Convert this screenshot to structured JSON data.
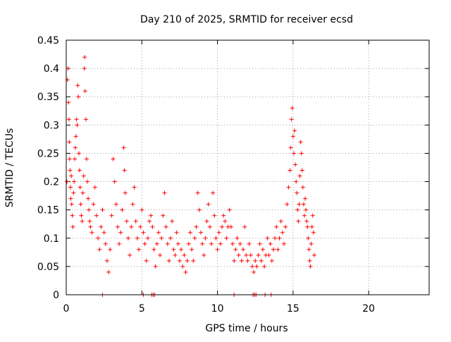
{
  "chart_data": {
    "type": "scatter",
    "title": "Day 210 of 2025, SRMTID for receiver ecsd",
    "xlabel": "GPS time / hours",
    "ylabel": "SRMTID / TECUs",
    "xlim": [
      0,
      24
    ],
    "ylim": [
      0,
      0.45
    ],
    "xticks": [
      0,
      5,
      10,
      15,
      20
    ],
    "xtick_labels": [
      "0",
      "5",
      "10",
      "15",
      "20"
    ],
    "yticks": [
      0,
      0.05,
      0.1,
      0.15,
      0.2,
      0.25,
      0.3,
      0.35,
      0.4,
      0.45
    ],
    "ytick_labels": [
      "0",
      "0.05",
      "0.1",
      "0.15",
      "0.2",
      "0.25",
      "0.3",
      "0.35",
      "0.4",
      "0.45"
    ],
    "grid": true,
    "marker": "+",
    "series_color": "#ff0000",
    "series": [
      {
        "name": "SRMTID",
        "points": [
          [
            0.05,
            0.2
          ],
          [
            0.08,
            0.38
          ],
          [
            0.12,
            0.4
          ],
          [
            0.15,
            0.34
          ],
          [
            0.18,
            0.31
          ],
          [
            0.2,
            0.27
          ],
          [
            0.22,
            0.24
          ],
          [
            0.25,
            0.22
          ],
          [
            0.28,
            0.19
          ],
          [
            0.3,
            0.17
          ],
          [
            0.33,
            0.21
          ],
          [
            0.36,
            0.16
          ],
          [
            0.4,
            0.14
          ],
          [
            0.44,
            0.12
          ],
          [
            0.48,
            0.18
          ],
          [
            0.52,
            0.2
          ],
          [
            0.56,
            0.24
          ],
          [
            0.6,
            0.26
          ],
          [
            0.64,
            0.28
          ],
          [
            0.68,
            0.31
          ],
          [
            0.72,
            0.3
          ],
          [
            0.76,
            0.37
          ],
          [
            0.8,
            0.35
          ],
          [
            0.84,
            0.25
          ],
          [
            0.88,
            0.22
          ],
          [
            0.92,
            0.19
          ],
          [
            0.96,
            0.16
          ],
          [
            1.0,
            0.14
          ],
          [
            1.05,
            0.13
          ],
          [
            1.1,
            0.18
          ],
          [
            1.15,
            0.21
          ],
          [
            1.2,
            0.4
          ],
          [
            1.22,
            0.42
          ],
          [
            1.25,
            0.36
          ],
          [
            1.3,
            0.31
          ],
          [
            1.35,
            0.24
          ],
          [
            1.4,
            0.2
          ],
          [
            1.45,
            0.17
          ],
          [
            1.5,
            0.15
          ],
          [
            1.55,
            0.13
          ],
          [
            1.6,
            0.12
          ],
          [
            1.7,
            0.11
          ],
          [
            1.8,
            0.16
          ],
          [
            1.9,
            0.19
          ],
          [
            2.0,
            0.14
          ],
          [
            2.1,
            0.1
          ],
          [
            2.2,
            0.08
          ],
          [
            2.3,
            0.12
          ],
          [
            2.4,
            0.15
          ],
          [
            2.5,
            0.11
          ],
          [
            2.6,
            0.09
          ],
          [
            2.7,
            0.06
          ],
          [
            2.8,
            0.04
          ],
          [
            2.9,
            0.08
          ],
          [
            3.0,
            0.14
          ],
          [
            3.1,
            0.24
          ],
          [
            3.2,
            0.2
          ],
          [
            3.3,
            0.16
          ],
          [
            3.4,
            0.12
          ],
          [
            3.5,
            0.09
          ],
          [
            3.6,
            0.11
          ],
          [
            3.7,
            0.15
          ],
          [
            3.8,
            0.26
          ],
          [
            3.85,
            0.22
          ],
          [
            3.9,
            0.18
          ],
          [
            4.0,
            0.13
          ],
          [
            4.1,
            0.1
          ],
          [
            4.2,
            0.07
          ],
          [
            4.3,
            0.12
          ],
          [
            4.4,
            0.16
          ],
          [
            4.5,
            0.19
          ],
          [
            4.6,
            0.13
          ],
          [
            4.7,
            0.1
          ],
          [
            4.8,
            0.08
          ],
          [
            4.9,
            0.12
          ],
          [
            5.0,
            0.15
          ],
          [
            5.1,
            0.11
          ],
          [
            5.2,
            0.09
          ],
          [
            5.3,
            0.06
          ],
          [
            5.4,
            0.1
          ],
          [
            5.5,
            0.13
          ],
          [
            5.6,
            0.14
          ],
          [
            5.7,
            0.12
          ],
          [
            5.8,
            0.08
          ],
          [
            5.9,
            0.05
          ],
          [
            6.0,
            0.09
          ],
          [
            6.1,
            0.11
          ],
          [
            6.2,
            0.07
          ],
          [
            6.3,
            0.1
          ],
          [
            6.4,
            0.14
          ],
          [
            6.5,
            0.18
          ],
          [
            6.6,
            0.12
          ],
          [
            6.7,
            0.09
          ],
          [
            6.8,
            0.06
          ],
          [
            6.9,
            0.1
          ],
          [
            7.0,
            0.13
          ],
          [
            7.1,
            0.08
          ],
          [
            7.2,
            0.07
          ],
          [
            7.3,
            0.11
          ],
          [
            7.4,
            0.09
          ],
          [
            7.5,
            0.06
          ],
          [
            7.6,
            0.08
          ],
          [
            7.7,
            0.05
          ],
          [
            7.8,
            0.07
          ],
          [
            7.9,
            0.04
          ],
          [
            8.0,
            0.06
          ],
          [
            8.1,
            0.09
          ],
          [
            8.2,
            0.11
          ],
          [
            8.3,
            0.08
          ],
          [
            8.4,
            0.06
          ],
          [
            8.5,
            0.1
          ],
          [
            8.6,
            0.12
          ],
          [
            8.7,
            0.18
          ],
          [
            8.8,
            0.15
          ],
          [
            8.9,
            0.11
          ],
          [
            9.0,
            0.09
          ],
          [
            9.1,
            0.07
          ],
          [
            9.2,
            0.1
          ],
          [
            9.3,
            0.13
          ],
          [
            9.4,
            0.16
          ],
          [
            9.5,
            0.12
          ],
          [
            9.6,
            0.09
          ],
          [
            9.7,
            0.18
          ],
          [
            9.8,
            0.14
          ],
          [
            9.9,
            0.1
          ],
          [
            10.0,
            0.08
          ],
          [
            10.1,
            0.11
          ],
          [
            10.2,
            0.09
          ],
          [
            10.3,
            0.12
          ],
          [
            10.4,
            0.14
          ],
          [
            10.5,
            0.13
          ],
          [
            10.6,
            0.1
          ],
          [
            10.7,
            0.12
          ],
          [
            10.8,
            0.15
          ],
          [
            10.9,
            0.12
          ],
          [
            11.0,
            0.09
          ],
          [
            11.1,
            0.06
          ],
          [
            11.2,
            0.08
          ],
          [
            11.3,
            0.1
          ],
          [
            11.4,
            0.07
          ],
          [
            11.5,
            0.09
          ],
          [
            11.6,
            0.06
          ],
          [
            11.7,
            0.08
          ],
          [
            11.8,
            0.12
          ],
          [
            11.9,
            0.07
          ],
          [
            12.0,
            0.06
          ],
          [
            12.1,
            0.09
          ],
          [
            12.2,
            0.07
          ],
          [
            12.3,
            0.05
          ],
          [
            12.4,
            0.04
          ],
          [
            12.5,
            0.06
          ],
          [
            12.6,
            0.05
          ],
          [
            12.7,
            0.07
          ],
          [
            12.8,
            0.09
          ],
          [
            12.9,
            0.06
          ],
          [
            13.0,
            0.08
          ],
          [
            13.1,
            0.05
          ],
          [
            13.2,
            0.07
          ],
          [
            13.3,
            0.1
          ],
          [
            13.4,
            0.07
          ],
          [
            13.5,
            0.09
          ],
          [
            13.6,
            0.06
          ],
          [
            13.7,
            0.08
          ],
          [
            13.8,
            0.1
          ],
          [
            13.9,
            0.12
          ],
          [
            14.0,
            0.08
          ],
          [
            14.1,
            0.1
          ],
          [
            14.2,
            0.13
          ],
          [
            14.3,
            0.11
          ],
          [
            14.4,
            0.09
          ],
          [
            14.5,
            0.12
          ],
          [
            14.6,
            0.16
          ],
          [
            14.7,
            0.19
          ],
          [
            14.8,
            0.22
          ],
          [
            14.85,
            0.26
          ],
          [
            14.9,
            0.31
          ],
          [
            14.95,
            0.33
          ],
          [
            15.0,
            0.28
          ],
          [
            15.05,
            0.25
          ],
          [
            15.1,
            0.29
          ],
          [
            15.15,
            0.23
          ],
          [
            15.2,
            0.2
          ],
          [
            15.25,
            0.18
          ],
          [
            15.3,
            0.15
          ],
          [
            15.35,
            0.13
          ],
          [
            15.4,
            0.16
          ],
          [
            15.45,
            0.21
          ],
          [
            15.5,
            0.27
          ],
          [
            15.55,
            0.25
          ],
          [
            15.6,
            0.22
          ],
          [
            15.65,
            0.19
          ],
          [
            15.7,
            0.16
          ],
          [
            15.75,
            0.14
          ],
          [
            15.8,
            0.17
          ],
          [
            15.85,
            0.15
          ],
          [
            15.9,
            0.13
          ],
          [
            15.95,
            0.12
          ],
          [
            16.0,
            0.1
          ],
          [
            16.05,
            0.08
          ],
          [
            16.1,
            0.06
          ],
          [
            16.15,
            0.05
          ],
          [
            16.2,
            0.09
          ],
          [
            16.25,
            0.12
          ],
          [
            16.3,
            0.14
          ],
          [
            16.35,
            0.11
          ],
          [
            16.4,
            0.07
          ]
        ],
        "zero_points": [
          2.4,
          5.1,
          5.65,
          5.75,
          5.85,
          11.1,
          12.35,
          12.45,
          12.55,
          13.15,
          13.55
        ]
      }
    ]
  }
}
